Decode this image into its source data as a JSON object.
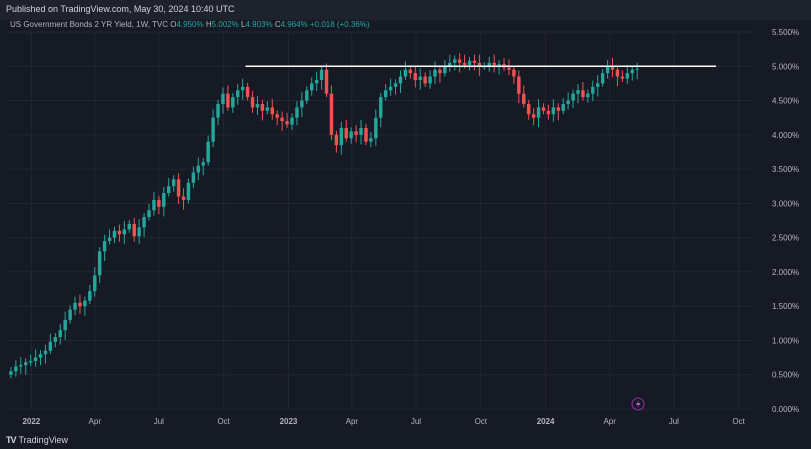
{
  "header": {
    "published": "Published on TradingView.com, May 30, 2024 10:40 UTC"
  },
  "legend": {
    "symbol": "US Government Bonds 2 YR Yield, 1W, TVC",
    "open_label": "O",
    "open": "4.950%",
    "high_label": "H",
    "high": "5.002%",
    "low_label": "L",
    "low": "4.903%",
    "close_label": "C",
    "close": "4.964%",
    "change": "+0.018 (+0.36%)"
  },
  "footer": {
    "logo_mark": "TV",
    "brand": "TradingView"
  },
  "colors": {
    "background": "#161a25",
    "up": "#26a69a",
    "down": "#ef5350",
    "grid": "#232735",
    "line": "#ffffff",
    "axis_text": "#b2b5be"
  },
  "chart_data": {
    "type": "candlestick",
    "title": "",
    "xlabel": "",
    "ylabel": "",
    "ylim": [
      0,
      5.5
    ],
    "y_ticks": [
      "0.000%",
      "0.500%",
      "1.000%",
      "1.500%",
      "2.000%",
      "2.500%",
      "3.000%",
      "3.500%",
      "4.000%",
      "4.500%",
      "5.000%",
      "5.500%"
    ],
    "x_ticks": [
      "2022",
      "Apr",
      "Jul",
      "Oct",
      "2023",
      "Apr",
      "Jul",
      "Oct",
      "2024",
      "Apr",
      "Jul",
      "Oct"
    ],
    "x_tick_dates": [
      "2022-01-01",
      "2022-04-01",
      "2022-07-01",
      "2022-10-01",
      "2023-01-01",
      "2023-04-01",
      "2023-07-01",
      "2023-10-01",
      "2024-01-01",
      "2024-04-01",
      "2024-07-01",
      "2024-10-01"
    ],
    "x_range": [
      "2021-11-26",
      "2024-10-20"
    ],
    "grid": true,
    "horizontal_line": {
      "value": 5.0,
      "from": "2022-11-01",
      "to": "2024-08-30"
    },
    "series_weekly_close": [
      0.55,
      0.62,
      0.64,
      0.68,
      0.7,
      0.75,
      0.8,
      0.85,
      0.98,
      1.05,
      1.15,
      1.3,
      1.45,
      1.55,
      1.5,
      1.58,
      1.72,
      1.95,
      2.3,
      2.45,
      2.5,
      2.6,
      2.55,
      2.62,
      2.7,
      2.52,
      2.65,
      2.8,
      2.9,
      3.05,
      2.95,
      3.15,
      3.25,
      3.35,
      3.1,
      3.05,
      3.3,
      3.45,
      3.55,
      3.6,
      3.9,
      4.25,
      4.45,
      4.6,
      4.4,
      4.55,
      4.65,
      4.7,
      4.55,
      4.4,
      4.45,
      4.35,
      4.4,
      4.3,
      4.25,
      4.2,
      4.15,
      4.25,
      4.4,
      4.5,
      4.65,
      4.75,
      4.8,
      4.95,
      4.6,
      4.0,
      3.85,
      4.1,
      3.95,
      4.05,
      4.0,
      4.1,
      3.9,
      3.95,
      4.25,
      4.55,
      4.65,
      4.7,
      4.75,
      4.85,
      4.95,
      4.9,
      4.8,
      4.85,
      4.75,
      4.85,
      4.95,
      4.9,
      5.0,
      5.05,
      5.1,
      5.05,
      5.02,
      5.08,
      5.05,
      5.0,
      5.0,
      5.05,
      5.02,
      5.03,
      4.98,
      4.95,
      4.85,
      4.6,
      4.45,
      4.3,
      4.25,
      4.4,
      4.35,
      4.3,
      4.4,
      4.35,
      4.45,
      4.5,
      4.6,
      4.65,
      4.55,
      4.6,
      4.7,
      4.75,
      4.9,
      5.0,
      4.95,
      4.85,
      4.82,
      4.9,
      4.95,
      4.964
    ]
  }
}
